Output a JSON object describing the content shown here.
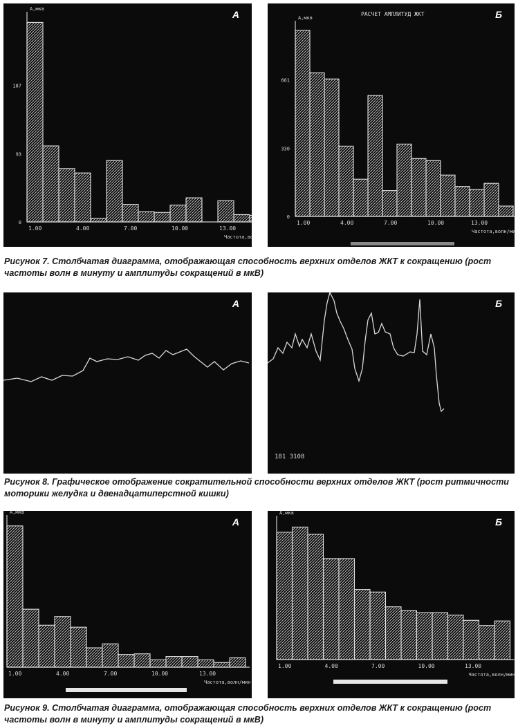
{
  "colors": {
    "panel_bg": "#0b0b0b",
    "trace": "#d9d9d9",
    "caption_text": "#1a1a1a"
  },
  "figure7": {
    "caption": "Рисунок 7. Столбчатая диаграмма, отображающая способность верхних отделов ЖКТ к сокращению (рост частоты волн в минуту и амплитуды сокращений в мкВ)",
    "panel_a": {
      "letter": "А",
      "ylabel": "A,мкв",
      "xlabel": "Частота,волн/мин"
    },
    "panel_b": {
      "letter": "Б",
      "title": "РАСЧЕТ АМПЛИТУД ЖКТ",
      "ylabel": "A,мкв",
      "xlabel": "Частота,волн/мин"
    }
  },
  "figure8": {
    "caption": "Рисунок 8. Графическое отображение сократительной способности верхних отделов ЖКТ (рост ритмичности моторики желудка и двенадцатиперстной кишки)",
    "panel_a": {
      "letter": "А"
    },
    "panel_b": {
      "letter": "Б",
      "readout": "181  3108"
    }
  },
  "figure9": {
    "caption": "Рисунок 9. Столбчатая диаграмма, отображающая способность верхних отделов ЖКТ к сокращению (рост частоты волн в минуту и амплитуды сокращений в мкВ)",
    "panel_a": {
      "letter": "А",
      "ylabel": "A,мкв",
      "xlabel": "Частота,волн/мин"
    },
    "panel_b": {
      "letter": "Б",
      "ylabel": "A,мкв",
      "xlabel": "Частота,волн/мин"
    }
  },
  "chart_data": [
    {
      "figure": "7A",
      "type": "bar",
      "x": [
        1,
        2,
        3,
        4,
        5,
        6,
        7,
        8,
        9,
        10,
        11,
        12,
        13,
        14,
        15
      ],
      "xticks": [
        "1.00",
        "4.00",
        "7.00",
        "10.00",
        "13.00"
      ],
      "yticks": [
        "0",
        "93",
        "187"
      ],
      "values": [
        273,
        104,
        73,
        67,
        5,
        84,
        24,
        14,
        13,
        23,
        33,
        0,
        29,
        10,
        9
      ],
      "ylim": [
        0,
        280
      ],
      "xlabel": "Частота,волн/мин",
      "ylabel": "A,мкв"
    },
    {
      "figure": "7Б",
      "type": "bar",
      "x": [
        1,
        2,
        3,
        4,
        5,
        6,
        7,
        8,
        9,
        10,
        11,
        12,
        13,
        14,
        15
      ],
      "xticks": [
        "1.00",
        "4.00",
        "7.00",
        "10.00",
        "13.00"
      ],
      "yticks": [
        "0",
        "330",
        "661"
      ],
      "values": [
        900,
        695,
        665,
        340,
        180,
        585,
        125,
        350,
        280,
        270,
        200,
        145,
        130,
        160,
        50
      ],
      "ylim": [
        0,
        920
      ],
      "title": "РАСЧЕТ АМПЛИТУД ЖКТ",
      "xlabel": "Частота,волн/мин",
      "ylabel": "A,мкв"
    },
    {
      "figure": "9A",
      "type": "bar",
      "x": [
        1,
        2,
        3,
        4,
        5,
        6,
        7,
        8,
        9,
        10,
        11,
        12,
        13,
        14,
        15
      ],
      "xticks": [
        "1.00",
        "4.00",
        "7.00",
        "10.00",
        "13.00"
      ],
      "values": [
        212,
        87,
        63,
        76,
        60,
        29,
        35,
        19,
        20,
        11,
        16,
        16,
        11,
        7,
        14
      ],
      "ylim": [
        0,
        220
      ],
      "xlabel": "Частота,волн/мин",
      "ylabel": "A,мкв"
    },
    {
      "figure": "9Б",
      "type": "bar",
      "x": [
        1,
        2,
        3,
        4,
        5,
        6,
        7,
        8,
        9,
        10,
        11,
        12,
        13,
        14,
        15
      ],
      "xticks": [
        "1.00",
        "4.00",
        "7.00",
        "10.00",
        "13.00"
      ],
      "values": [
        198,
        206,
        195,
        157,
        157,
        109,
        105,
        82,
        76,
        73,
        73,
        69,
        61,
        53,
        60
      ],
      "ylim": [
        0,
        215
      ],
      "xlabel": "Частота,волн/мин",
      "ylabel": "A,мкв"
    }
  ]
}
